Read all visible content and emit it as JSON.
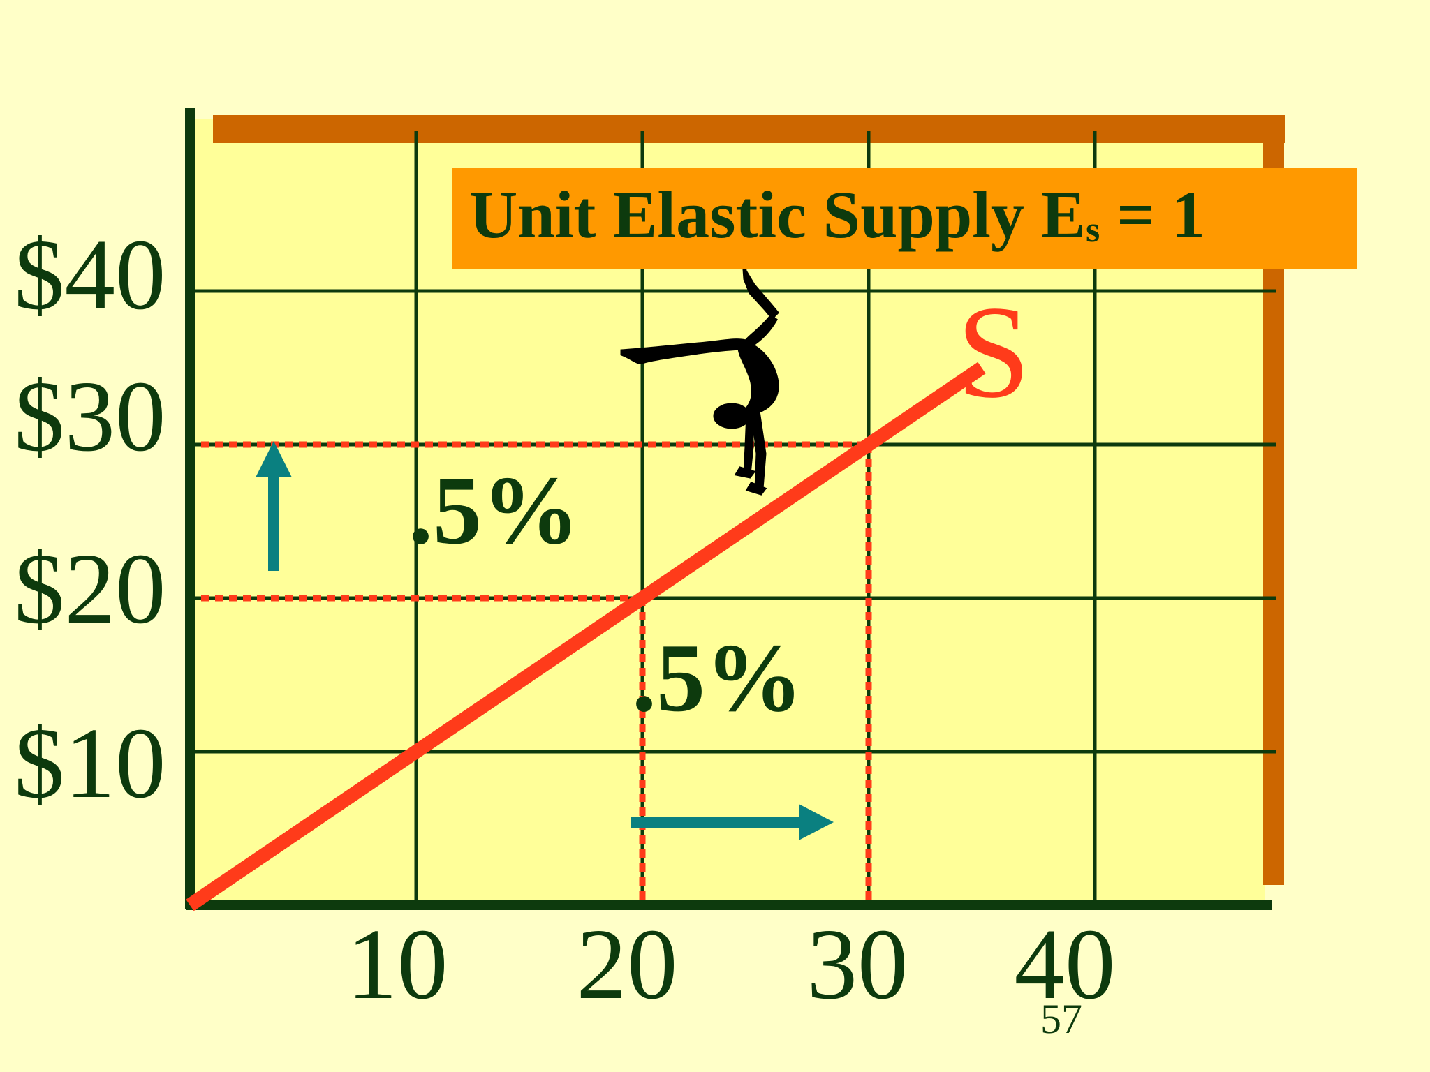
{
  "chart_data": {
    "type": "line",
    "title": "Unit Elastic Supply E",
    "title_subscript": "s",
    "title_suffix": " = 1",
    "curve_label": "S",
    "x": [
      0,
      10,
      20,
      30,
      35
    ],
    "y": [
      0,
      10,
      20,
      30,
      35
    ],
    "xlim": [
      0,
      50
    ],
    "ylim": [
      0,
      45
    ],
    "xticks": [
      10,
      20,
      30,
      40
    ],
    "xtick_labels": [
      "10",
      "20",
      "30",
      "40"
    ],
    "yticks": [
      10,
      20,
      30,
      40
    ],
    "ytick_labels": [
      "$10",
      "$20",
      "$30",
      "$40"
    ],
    "grid": true,
    "price_change": {
      "from": 20,
      "to": 30,
      "label": ".5%"
    },
    "quantity_change": {
      "from": 20,
      "to": 30,
      "label": ".5%"
    },
    "colors": {
      "supply_line": "#ff3b1a",
      "grid": "#0d3a0d",
      "frame_accent": "#cc6600",
      "title_box": "#ff9900",
      "arrow": "#0a8080"
    }
  },
  "page_number": "57"
}
